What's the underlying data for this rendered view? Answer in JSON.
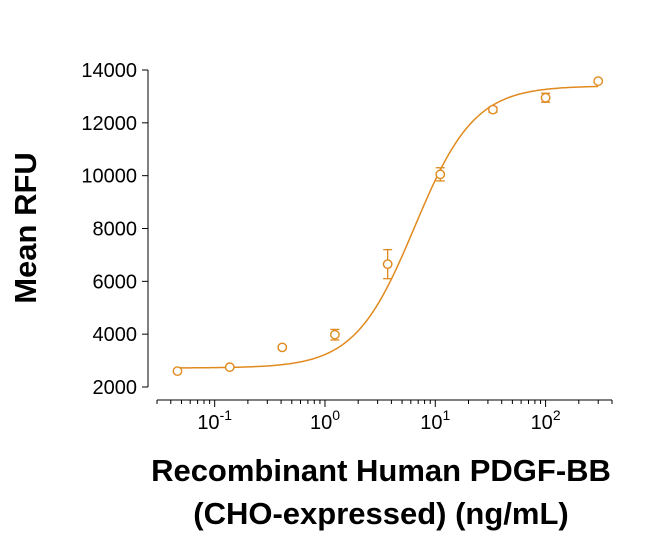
{
  "chart_data": {
    "type": "scatter",
    "title": "",
    "xlabel_line1": "Recombinant Human PDGF-BB",
    "xlabel_line2": "(CHO-expressed) (ng/mL)",
    "ylabel": "Mean RFU",
    "xscale": "log",
    "xlim": [
      0.03,
      400
    ],
    "ylim": [
      2000,
      14000
    ],
    "yticks": [
      2000,
      4000,
      6000,
      8000,
      10000,
      12000,
      14000
    ],
    "xtick_values": [
      0.1,
      1,
      10,
      100
    ],
    "xtick_labels": [
      {
        "base": "10",
        "exp": "-1"
      },
      {
        "base": "10",
        "exp": "0"
      },
      {
        "base": "10",
        "exp": "1"
      },
      {
        "base": "10",
        "exp": "2"
      }
    ],
    "series": [
      {
        "name": "PDGF-BB",
        "color": "#E08A1E",
        "points": [
          {
            "x": 0.046,
            "y": 2600,
            "err": 50
          },
          {
            "x": 0.137,
            "y": 2750,
            "err": 50
          },
          {
            "x": 0.41,
            "y": 3500,
            "err": 50
          },
          {
            "x": 1.23,
            "y": 3980,
            "err": 200
          },
          {
            "x": 3.7,
            "y": 6650,
            "err": 550
          },
          {
            "x": 11.1,
            "y": 10050,
            "err": 250
          },
          {
            "x": 33.3,
            "y": 12500,
            "err": 100
          },
          {
            "x": 100,
            "y": 12950,
            "err": 170
          },
          {
            "x": 300,
            "y": 13580,
            "err": 50
          }
        ],
        "fit": {
          "model": "4PL",
          "bottom": 2720,
          "top": 13400,
          "ec50": 6.5,
          "hill": 1.6
        }
      }
    ]
  }
}
